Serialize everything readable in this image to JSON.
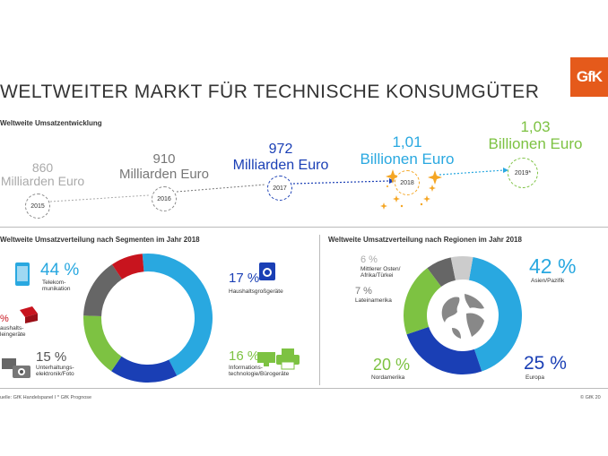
{
  "logo": "GfK",
  "title": "WELTWEITER MARKT FÜR TECHNISCHE KONSUMGÜTER",
  "timeline": {
    "title": "Weltweite Umsatzentwicklung",
    "points": [
      {
        "value": "860",
        "unit": "Milliarden Euro",
        "year": "2015",
        "color": "#aaaaaa"
      },
      {
        "value": "910",
        "unit": "Milliarden Euro",
        "year": "2016",
        "color": "#777777"
      },
      {
        "value": "972",
        "unit": "Milliarden Euro",
        "year": "2017",
        "color": "#1a3fb5"
      },
      {
        "value": "1,01",
        "unit": "Billionen Euro",
        "year": "2018",
        "color": "#29a8e0"
      },
      {
        "value": "1,03",
        "unit": "Billionen Euro",
        "year": "2019*",
        "color": "#7dc242"
      }
    ]
  },
  "segments": {
    "title": "Weltweite Umsatzverteilung nach Segmenten im Jahr 2018",
    "labels": [
      {
        "pct": "44 %",
        "name": "Telekom-\nmunikation",
        "color": "#29a8e0"
      },
      {
        "pct": "17 %",
        "name": "Haushaltsgroßgeräte",
        "color": "#1a3fb5"
      },
      {
        "pct": "16 %",
        "name": "Informations-\ntechnologie/Bürogeräte",
        "color": "#7dc242"
      },
      {
        "pct": "15 %",
        "name": "Unterhaltungs-\nelektronik/Foto",
        "color": "#666666"
      },
      {
        "pct": "%",
        "name": "aushalts-\nleingeräte",
        "color": "#c8141e"
      }
    ]
  },
  "regions": {
    "title": "Weltweite Umsatzverteilung nach Regionen im Jahr 2018",
    "labels": [
      {
        "pct": "42 %",
        "name": "Asien/Pazifik",
        "color": "#29a8e0"
      },
      {
        "pct": "25 %",
        "name": "Europa",
        "color": "#1a3fb5"
      },
      {
        "pct": "20 %",
        "name": "Nordamerika",
        "color": "#7dc242"
      },
      {
        "pct": "7 %",
        "name": "Lateinamerika",
        "color": "#666666"
      },
      {
        "pct": "6 %",
        "name": "Mittlerer Osten/\nAfrika/Türkei",
        "color": "#aaaaaa"
      }
    ]
  },
  "footer": {
    "source": "uelle: GfK Handelspanel I * GfK Prognose",
    "copyright": "© GfK 20"
  },
  "chart_data": [
    {
      "type": "line",
      "title": "Weltweite Umsatzentwicklung",
      "x": [
        "2015",
        "2016",
        "2017",
        "2018",
        "2019*"
      ],
      "series": [
        {
          "values": [
            860,
            910,
            972,
            1010,
            1030
          ]
        }
      ]
    },
    {
      "type": "pie",
      "title": "Weltweite Umsatzverteilung nach Segmenten im Jahr 2018",
      "categories": [
        "Telekommunikation",
        "Haushaltsgroßgeräte",
        "Informationstechnologie/Bürogeräte",
        "Unterhaltungselektronik/Foto",
        "Haushaltskleingeräte"
      ],
      "values": [
        44,
        17,
        16,
        15,
        8
      ],
      "colors": [
        "#29a8e0",
        "#1a3fb5",
        "#7dc242",
        "#666666",
        "#c8141e"
      ]
    },
    {
      "type": "pie",
      "title": "Weltweite Umsatzverteilung nach Regionen im Jahr 2018",
      "categories": [
        "Asien/Pazifik",
        "Europa",
        "Nordamerika",
        "Lateinamerika",
        "Mittlerer Osten/Afrika/Türkei"
      ],
      "values": [
        42,
        25,
        20,
        7,
        6
      ],
      "colors": [
        "#29a8e0",
        "#1a3fb5",
        "#7dc242",
        "#666666",
        "#cccccc"
      ]
    }
  ]
}
